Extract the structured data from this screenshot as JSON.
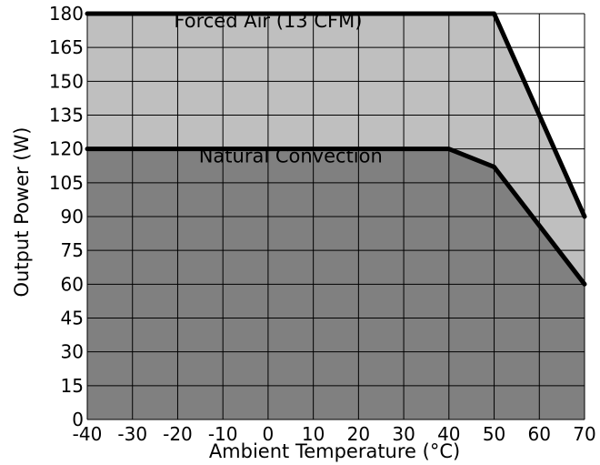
{
  "chart_data": {
    "type": "area",
    "xlabel": "Ambient Temperature (°C)",
    "ylabel": "Output Power (W)",
    "xlim": [
      -40,
      70
    ],
    "ylim": [
      0,
      180
    ],
    "xticks": [
      -40,
      -30,
      -20,
      -10,
      0,
      10,
      20,
      30,
      40,
      50,
      60,
      70
    ],
    "yticks": [
      0,
      15,
      30,
      45,
      60,
      75,
      90,
      105,
      120,
      135,
      150,
      165,
      180
    ],
    "grid": true,
    "series": [
      {
        "name": "Forced Air (13 CFM)",
        "x": [
          -40,
          50,
          70
        ],
        "y": [
          180,
          180,
          90
        ]
      },
      {
        "name": "Natural Convection",
        "x": [
          -40,
          40,
          50,
          70
        ],
        "y": [
          120,
          120,
          112,
          60
        ]
      }
    ],
    "annotations": [
      {
        "text": "Forced Air (13 CFM)",
        "x": 0,
        "y": 174
      },
      {
        "text": "Natural Convection",
        "x": 5,
        "y": 114
      }
    ],
    "colors": {
      "forced_fill": "#bfbfbf",
      "natural_fill": "#808080",
      "grid": "#000000",
      "line": "#000000"
    }
  }
}
